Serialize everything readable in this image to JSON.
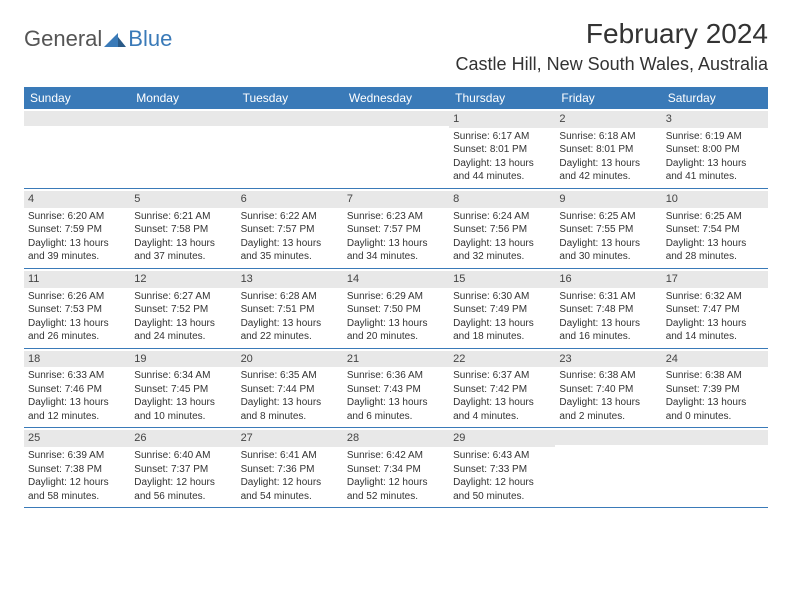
{
  "brand": {
    "part1": "General",
    "part2": "Blue"
  },
  "title": "February 2024",
  "location": "Castle Hill, New South Wales, Australia",
  "colors": {
    "accent": "#3a7ab8",
    "dayNumBg": "#e8e8e8",
    "text": "#333333",
    "bg": "#ffffff"
  },
  "dayHeaders": [
    "Sunday",
    "Monday",
    "Tuesday",
    "Wednesday",
    "Thursday",
    "Friday",
    "Saturday"
  ],
  "weeks": [
    [
      {
        "num": "",
        "sunrise": "",
        "sunset": "",
        "daylight": ""
      },
      {
        "num": "",
        "sunrise": "",
        "sunset": "",
        "daylight": ""
      },
      {
        "num": "",
        "sunrise": "",
        "sunset": "",
        "daylight": ""
      },
      {
        "num": "",
        "sunrise": "",
        "sunset": "",
        "daylight": ""
      },
      {
        "num": "1",
        "sunrise": "Sunrise: 6:17 AM",
        "sunset": "Sunset: 8:01 PM",
        "daylight": "Daylight: 13 hours and 44 minutes."
      },
      {
        "num": "2",
        "sunrise": "Sunrise: 6:18 AM",
        "sunset": "Sunset: 8:01 PM",
        "daylight": "Daylight: 13 hours and 42 minutes."
      },
      {
        "num": "3",
        "sunrise": "Sunrise: 6:19 AM",
        "sunset": "Sunset: 8:00 PM",
        "daylight": "Daylight: 13 hours and 41 minutes."
      }
    ],
    [
      {
        "num": "4",
        "sunrise": "Sunrise: 6:20 AM",
        "sunset": "Sunset: 7:59 PM",
        "daylight": "Daylight: 13 hours and 39 minutes."
      },
      {
        "num": "5",
        "sunrise": "Sunrise: 6:21 AM",
        "sunset": "Sunset: 7:58 PM",
        "daylight": "Daylight: 13 hours and 37 minutes."
      },
      {
        "num": "6",
        "sunrise": "Sunrise: 6:22 AM",
        "sunset": "Sunset: 7:57 PM",
        "daylight": "Daylight: 13 hours and 35 minutes."
      },
      {
        "num": "7",
        "sunrise": "Sunrise: 6:23 AM",
        "sunset": "Sunset: 7:57 PM",
        "daylight": "Daylight: 13 hours and 34 minutes."
      },
      {
        "num": "8",
        "sunrise": "Sunrise: 6:24 AM",
        "sunset": "Sunset: 7:56 PM",
        "daylight": "Daylight: 13 hours and 32 minutes."
      },
      {
        "num": "9",
        "sunrise": "Sunrise: 6:25 AM",
        "sunset": "Sunset: 7:55 PM",
        "daylight": "Daylight: 13 hours and 30 minutes."
      },
      {
        "num": "10",
        "sunrise": "Sunrise: 6:25 AM",
        "sunset": "Sunset: 7:54 PM",
        "daylight": "Daylight: 13 hours and 28 minutes."
      }
    ],
    [
      {
        "num": "11",
        "sunrise": "Sunrise: 6:26 AM",
        "sunset": "Sunset: 7:53 PM",
        "daylight": "Daylight: 13 hours and 26 minutes."
      },
      {
        "num": "12",
        "sunrise": "Sunrise: 6:27 AM",
        "sunset": "Sunset: 7:52 PM",
        "daylight": "Daylight: 13 hours and 24 minutes."
      },
      {
        "num": "13",
        "sunrise": "Sunrise: 6:28 AM",
        "sunset": "Sunset: 7:51 PM",
        "daylight": "Daylight: 13 hours and 22 minutes."
      },
      {
        "num": "14",
        "sunrise": "Sunrise: 6:29 AM",
        "sunset": "Sunset: 7:50 PM",
        "daylight": "Daylight: 13 hours and 20 minutes."
      },
      {
        "num": "15",
        "sunrise": "Sunrise: 6:30 AM",
        "sunset": "Sunset: 7:49 PM",
        "daylight": "Daylight: 13 hours and 18 minutes."
      },
      {
        "num": "16",
        "sunrise": "Sunrise: 6:31 AM",
        "sunset": "Sunset: 7:48 PM",
        "daylight": "Daylight: 13 hours and 16 minutes."
      },
      {
        "num": "17",
        "sunrise": "Sunrise: 6:32 AM",
        "sunset": "Sunset: 7:47 PM",
        "daylight": "Daylight: 13 hours and 14 minutes."
      }
    ],
    [
      {
        "num": "18",
        "sunrise": "Sunrise: 6:33 AM",
        "sunset": "Sunset: 7:46 PM",
        "daylight": "Daylight: 13 hours and 12 minutes."
      },
      {
        "num": "19",
        "sunrise": "Sunrise: 6:34 AM",
        "sunset": "Sunset: 7:45 PM",
        "daylight": "Daylight: 13 hours and 10 minutes."
      },
      {
        "num": "20",
        "sunrise": "Sunrise: 6:35 AM",
        "sunset": "Sunset: 7:44 PM",
        "daylight": "Daylight: 13 hours and 8 minutes."
      },
      {
        "num": "21",
        "sunrise": "Sunrise: 6:36 AM",
        "sunset": "Sunset: 7:43 PM",
        "daylight": "Daylight: 13 hours and 6 minutes."
      },
      {
        "num": "22",
        "sunrise": "Sunrise: 6:37 AM",
        "sunset": "Sunset: 7:42 PM",
        "daylight": "Daylight: 13 hours and 4 minutes."
      },
      {
        "num": "23",
        "sunrise": "Sunrise: 6:38 AM",
        "sunset": "Sunset: 7:40 PM",
        "daylight": "Daylight: 13 hours and 2 minutes."
      },
      {
        "num": "24",
        "sunrise": "Sunrise: 6:38 AM",
        "sunset": "Sunset: 7:39 PM",
        "daylight": "Daylight: 13 hours and 0 minutes."
      }
    ],
    [
      {
        "num": "25",
        "sunrise": "Sunrise: 6:39 AM",
        "sunset": "Sunset: 7:38 PM",
        "daylight": "Daylight: 12 hours and 58 minutes."
      },
      {
        "num": "26",
        "sunrise": "Sunrise: 6:40 AM",
        "sunset": "Sunset: 7:37 PM",
        "daylight": "Daylight: 12 hours and 56 minutes."
      },
      {
        "num": "27",
        "sunrise": "Sunrise: 6:41 AM",
        "sunset": "Sunset: 7:36 PM",
        "daylight": "Daylight: 12 hours and 54 minutes."
      },
      {
        "num": "28",
        "sunrise": "Sunrise: 6:42 AM",
        "sunset": "Sunset: 7:34 PM",
        "daylight": "Daylight: 12 hours and 52 minutes."
      },
      {
        "num": "29",
        "sunrise": "Sunrise: 6:43 AM",
        "sunset": "Sunset: 7:33 PM",
        "daylight": "Daylight: 12 hours and 50 minutes."
      },
      {
        "num": "",
        "sunrise": "",
        "sunset": "",
        "daylight": ""
      },
      {
        "num": "",
        "sunrise": "",
        "sunset": "",
        "daylight": ""
      }
    ]
  ]
}
